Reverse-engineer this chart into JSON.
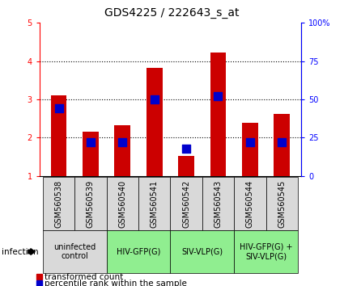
{
  "title": "GDS4225 / 222643_s_at",
  "samples": [
    "GSM560538",
    "GSM560539",
    "GSM560540",
    "GSM560541",
    "GSM560542",
    "GSM560543",
    "GSM560544",
    "GSM560545"
  ],
  "transformed_counts": [
    3.1,
    2.15,
    2.32,
    3.82,
    1.52,
    4.22,
    2.38,
    2.62
  ],
  "percentile_ranks": [
    44,
    22,
    22,
    50,
    18,
    52,
    22,
    22
  ],
  "ylim_left": [
    1,
    5
  ],
  "ylim_right": [
    0,
    100
  ],
  "yticks_left": [
    1,
    2,
    3,
    4,
    5
  ],
  "yticks_right": [
    0,
    25,
    50,
    75,
    100
  ],
  "bar_color": "#cc0000",
  "dot_color": "#0000cc",
  "groups": [
    {
      "label": "uninfected\ncontrol",
      "start": 0,
      "end": 2,
      "color": "#d9d9d9"
    },
    {
      "label": "HIV-GFP(G)",
      "start": 2,
      "end": 4,
      "color": "#90ee90"
    },
    {
      "label": "SIV-VLP(G)",
      "start": 4,
      "end": 6,
      "color": "#90ee90"
    },
    {
      "label": "HIV-GFP(G) +\nSIV-VLP(G)",
      "start": 6,
      "end": 8,
      "color": "#90ee90"
    }
  ],
  "legend_red_label": "transformed count",
  "legend_blue_label": "percentile rank within the sample",
  "infection_label": "infection",
  "bar_width": 0.5,
  "dot_size": 55,
  "title_fontsize": 10,
  "tick_fontsize": 7,
  "group_label_fontsize": 7,
  "legend_fontsize": 7.5
}
